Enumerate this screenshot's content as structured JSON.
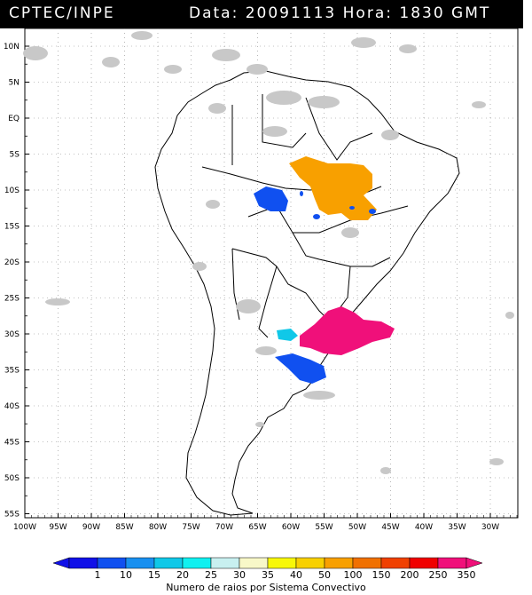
{
  "header": {
    "left": "CPTEC/INPE",
    "right": "Data: 20091113 Hora: 1830 GMT"
  },
  "lat_labels": [
    "10N",
    "5N",
    "EQ",
    "5S",
    "10S",
    "15S",
    "20S",
    "25S",
    "30S",
    "35S",
    "40S",
    "45S",
    "50S",
    "55S"
  ],
  "lon_labels": [
    "100W",
    "95W",
    "90W",
    "85W",
    "80W",
    "75W",
    "70W",
    "65W",
    "60W",
    "55W",
    "50W",
    "45W",
    "40W",
    "35W",
    "30W"
  ],
  "legend": {
    "values": [
      "1",
      "10",
      "15",
      "20",
      "25",
      "30",
      "35",
      "40",
      "50",
      "100",
      "150",
      "200",
      "250",
      "350"
    ],
    "colors": [
      "#1010e8",
      "#1050f0",
      "#1890f0",
      "#10c8e8",
      "#10f0f0",
      "#c8f0f0",
      "#f8f8c8",
      "#f8f808",
      "#f8d000",
      "#f8a000",
      "#f07000",
      "#f04000",
      "#f00000",
      "#f0107a"
    ],
    "title": "Numero de raios por Sistema Convectivo"
  }
}
